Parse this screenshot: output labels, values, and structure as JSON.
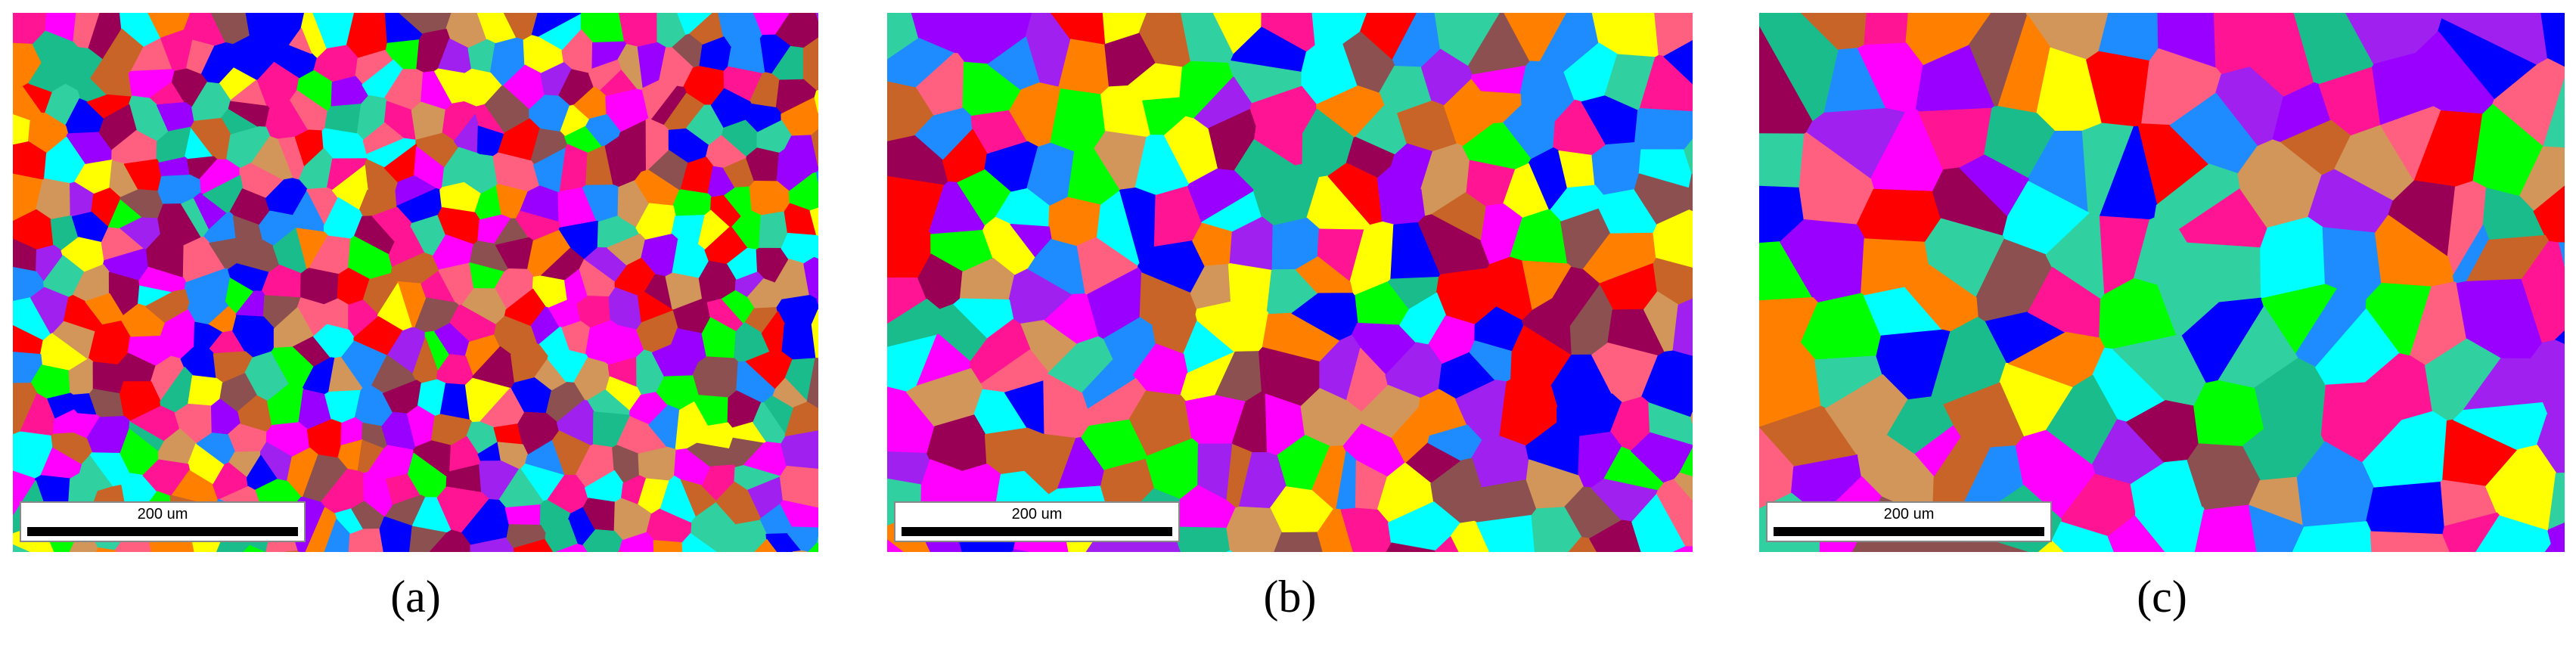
{
  "panels": [
    {
      "label": "(a)",
      "scale_bar": "200 um"
    },
    {
      "label": "(b)",
      "scale_bar": "200 um"
    },
    {
      "label": "(c)",
      "scale_bar": "200 um"
    }
  ]
}
